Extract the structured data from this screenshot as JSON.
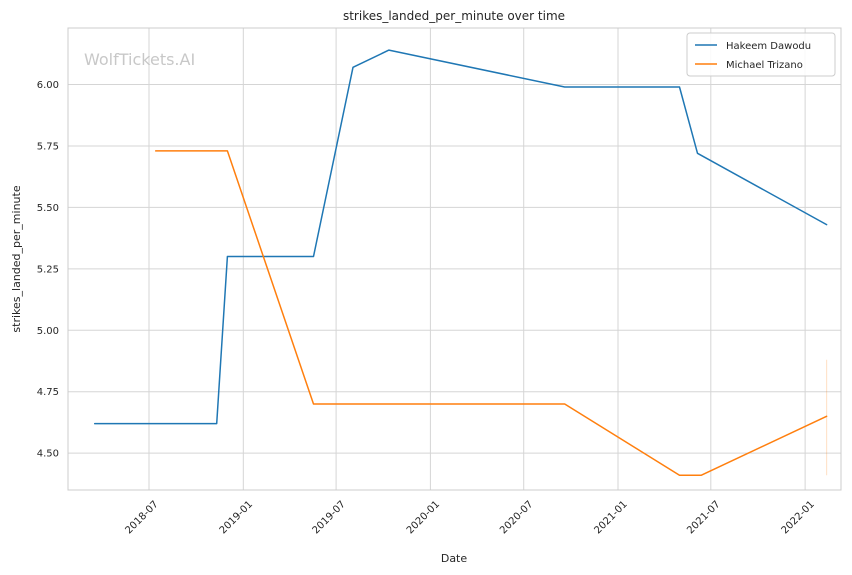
{
  "chart_data": {
    "type": "line",
    "title": "strikes_landed_per_minute over time",
    "xlabel": "Date",
    "ylabel": "strikes_landed_per_minute",
    "watermark": "WolfTickets.AI",
    "xlim": [
      "2018-01-24",
      "2022-03-12"
    ],
    "ylim": [
      4.35,
      6.23
    ],
    "x_ticks": [
      {
        "date": "2018-07-01",
        "label": "2018-07"
      },
      {
        "date": "2019-01-01",
        "label": "2019-01"
      },
      {
        "date": "2019-07-01",
        "label": "2019-07"
      },
      {
        "date": "2020-01-01",
        "label": "2020-01"
      },
      {
        "date": "2020-07-01",
        "label": "2020-07"
      },
      {
        "date": "2021-01-01",
        "label": "2021-01"
      },
      {
        "date": "2021-07-01",
        "label": "2021-07"
      },
      {
        "date": "2022-01-01",
        "label": "2022-01"
      }
    ],
    "y_ticks": [
      {
        "value": 4.5,
        "label": "4.50"
      },
      {
        "value": 4.75,
        "label": "4.75"
      },
      {
        "value": 5.0,
        "label": "5.00"
      },
      {
        "value": 5.25,
        "label": "5.25"
      },
      {
        "value": 5.5,
        "label": "5.50"
      },
      {
        "value": 5.75,
        "label": "5.75"
      },
      {
        "value": 6.0,
        "label": "6.00"
      }
    ],
    "grid": true,
    "legend_position": "top-right",
    "series": [
      {
        "name": "Hakeem Dawodu",
        "color": "#1f77b4",
        "points": [
          {
            "x": "2018-03-17",
            "y": 4.62
          },
          {
            "x": "2018-11-10",
            "y": 4.62
          },
          {
            "x": "2018-12-01",
            "y": 5.3
          },
          {
            "x": "2019-05-18",
            "y": 5.3
          },
          {
            "x": "2019-08-03",
            "y": 6.07
          },
          {
            "x": "2019-10-12",
            "y": 6.14
          },
          {
            "x": "2020-09-19",
            "y": 5.99
          },
          {
            "x": "2021-05-01",
            "y": 5.99
          },
          {
            "x": "2021-06-05",
            "y": 5.72
          },
          {
            "x": "2022-02-12",
            "y": 5.43
          }
        ]
      },
      {
        "name": "Michael Trizano",
        "color": "#ff7f0e",
        "points": [
          {
            "x": "2018-07-14",
            "y": 5.73
          },
          {
            "x": "2018-12-01",
            "y": 5.73
          },
          {
            "x": "2019-05-18",
            "y": 4.7
          },
          {
            "x": "2020-09-19",
            "y": 4.7
          },
          {
            "x": "2021-05-01",
            "y": 4.41
          },
          {
            "x": "2021-06-12",
            "y": 4.41
          },
          {
            "x": "2022-02-12",
            "y": 4.65
          }
        ]
      }
    ],
    "error_band": {
      "series": "Michael Trizano",
      "x": "2022-02-12",
      "y_low": 4.41,
      "y_high": 4.88,
      "color": "#ff7f0e"
    }
  }
}
